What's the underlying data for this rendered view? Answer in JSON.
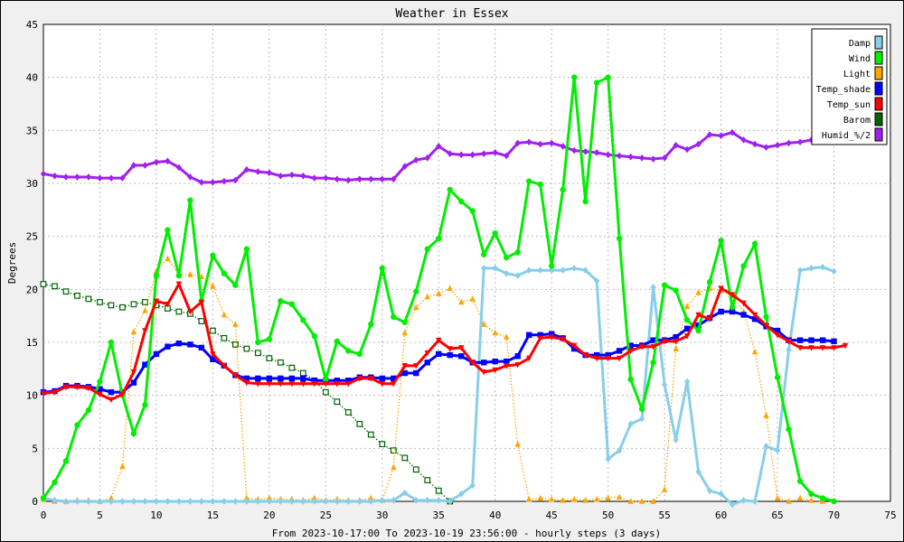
{
  "chart_data": {
    "type": "line",
    "title": "Weather in Essex",
    "ylabel": "Degrees",
    "xlabel": "From 2023-10-17:00 To 2023-10-19 23:56:00 - hourly steps (3 days)",
    "xlim": [
      0,
      75
    ],
    "ylim": [
      0,
      45
    ],
    "x_ticks": [
      0,
      5,
      10,
      15,
      20,
      25,
      30,
      35,
      40,
      45,
      50,
      55,
      60,
      65,
      70,
      75
    ],
    "y_ticks": [
      0,
      5,
      10,
      15,
      20,
      25,
      30,
      35,
      40,
      45
    ],
    "grid": true,
    "legend_position": "top-right",
    "series": [
      {
        "name": "Damp",
        "color": "#87ceeb",
        "marker": "diamond",
        "values": [
          0.3,
          0.1,
          0,
          0,
          0,
          0,
          0,
          0,
          0,
          0,
          0,
          0,
          0,
          0,
          0,
          0,
          0,
          0,
          0,
          0,
          0,
          0,
          0,
          0,
          0,
          0,
          0,
          0,
          0,
          0,
          0.1,
          0.1,
          0.8,
          0.1,
          0.1,
          0.1,
          0,
          0.7,
          1.5,
          22,
          22,
          21.5,
          21.3,
          21.8,
          21.8,
          21.8,
          21.8,
          22,
          21.8,
          20.8,
          4,
          4.8,
          7.3,
          7.8,
          20.2,
          11,
          5.8,
          11.3,
          2.8,
          1,
          0.7,
          -0.3,
          0.1,
          0,
          5.2,
          4.8,
          14.3,
          21.8,
          22,
          22.1,
          21.7
        ]
      },
      {
        "name": "Wind",
        "color": "#00ee00",
        "marker": "circle",
        "values": [
          0.3,
          1.8,
          3.8,
          7.2,
          8.6,
          11.3,
          15,
          10,
          6.4,
          9.1,
          21.3,
          25.6,
          21.3,
          28.4,
          18.9,
          23.2,
          21.5,
          20.4,
          23.8,
          15,
          15.3,
          18.9,
          18.6,
          17.1,
          15.6,
          11.5,
          15.1,
          14.2,
          13.9,
          16.7,
          22,
          17.4,
          16.9,
          19.8,
          23.8,
          24.8,
          29.4,
          28.3,
          27.4,
          23.3,
          25.3,
          23,
          23.5,
          30.2,
          29.9,
          22.2,
          29.4,
          40,
          28.3,
          39.5,
          40,
          24.8,
          11.5,
          8.7,
          13.1,
          20.4,
          19.9,
          17.1,
          16.1,
          20.7,
          24.6,
          18.3,
          22.2,
          24.3,
          17.4,
          11.7,
          6.8,
          1.9,
          0.7,
          0.3,
          0
        ]
      },
      {
        "name": "Light",
        "color": "#ffa500",
        "marker": "triangle",
        "values": [
          0.2,
          0,
          0,
          0.1,
          0.1,
          0,
          0.3,
          3.3,
          16,
          18,
          21.7,
          22.9,
          21.4,
          21.4,
          21.2,
          20.3,
          17.6,
          16.7,
          0.3,
          0.2,
          0.3,
          0.2,
          0.2,
          0.1,
          0.3,
          0.1,
          0.2,
          0.1,
          0.1,
          0.3,
          0.1,
          3.2,
          15.9,
          18.3,
          19.3,
          19.6,
          20.1,
          18.8,
          19.1,
          16.7,
          15.9,
          15.5,
          5.4,
          0.2,
          0.3,
          0.2,
          0.1,
          0.2,
          0.1,
          0.2,
          0.3,
          0.4,
          0,
          0,
          0,
          1.1,
          14.4,
          18.4,
          19.7,
          20.1,
          19.9,
          19.4,
          17.9,
          14.1,
          8.1,
          0.3,
          0,
          0.3,
          0.1,
          0
        ]
      },
      {
        "name": "Temp_shade",
        "color": "#0000ff",
        "marker": "square",
        "values": [
          10.3,
          10.4,
          10.9,
          10.9,
          10.8,
          10.6,
          10.3,
          10.3,
          11.2,
          12.9,
          13.9,
          14.6,
          14.9,
          14.8,
          14.5,
          13.4,
          12.8,
          11.9,
          11.6,
          11.6,
          11.6,
          11.6,
          11.6,
          11.6,
          11.4,
          11.4,
          11.4,
          11.4,
          11.7,
          11.7,
          11.6,
          11.6,
          12.1,
          12.1,
          13.1,
          13.9,
          13.8,
          13.7,
          13.1,
          13.1,
          13.2,
          13.2,
          13.7,
          15.7,
          15.7,
          15.8,
          15.4,
          14.4,
          13.8,
          13.8,
          13.8,
          14.2,
          14.7,
          14.7,
          15.2,
          15.2,
          15.5,
          16.3,
          16.6,
          17.3,
          17.9,
          17.9,
          17.6,
          17.2,
          16.5,
          16.1,
          15.2,
          15.2,
          15.2,
          15.2,
          15.1
        ]
      },
      {
        "name": "Temp_sun",
        "color": "#ff0000",
        "marker": "triangle-down",
        "values": [
          10.2,
          10.3,
          10.8,
          10.8,
          10.7,
          10.1,
          9.6,
          10.1,
          12.2,
          16.1,
          18.9,
          18.6,
          20.5,
          17.9,
          18.8,
          13.9,
          12.8,
          11.9,
          11.2,
          11.1,
          11.1,
          11.1,
          11.1,
          11.1,
          11.1,
          11.1,
          11.1,
          11.1,
          11.6,
          11.6,
          11.1,
          11.1,
          12.8,
          12.8,
          14,
          15.2,
          14.4,
          14.5,
          13.1,
          12.2,
          12.4,
          12.8,
          12.9,
          13.5,
          15.4,
          15.5,
          15.3,
          14.7,
          13.8,
          13.5,
          13.5,
          13.5,
          14.2,
          14.6,
          14.6,
          15.1,
          15.1,
          15.6,
          17.6,
          17.2,
          20.1,
          19.5,
          18.7,
          17.6,
          16.6,
          15.7,
          15.1,
          14.5,
          14.5,
          14.5,
          14.5,
          14.7
        ]
      },
      {
        "name": "Barom",
        "color": "#006400",
        "marker": "open-square",
        "values": [
          20.5,
          20.3,
          19.8,
          19.4,
          19.1,
          18.8,
          18.5,
          18.3,
          18.6,
          18.8,
          18.5,
          18.2,
          17.9,
          17.7,
          17,
          16.1,
          15.4,
          14.8,
          14.4,
          14,
          13.5,
          13.1,
          12.6,
          12.1,
          11.4,
          10.3,
          9.4,
          8.4,
          7.3,
          6.3,
          5.4,
          4.8,
          4.1,
          3,
          2,
          1,
          0
        ]
      },
      {
        "name": "Humid_%/2",
        "color": "#a020f0",
        "marker": "diamond",
        "values": [
          30.9,
          30.7,
          30.6,
          30.6,
          30.6,
          30.5,
          30.5,
          30.5,
          31.7,
          31.7,
          32,
          32.1,
          31.5,
          30.6,
          30.1,
          30.1,
          30.2,
          30.3,
          31.3,
          31.1,
          31,
          30.7,
          30.8,
          30.7,
          30.5,
          30.5,
          30.4,
          30.3,
          30.4,
          30.4,
          30.4,
          30.4,
          31.6,
          32.2,
          32.4,
          33.5,
          32.8,
          32.7,
          32.7,
          32.8,
          32.9,
          32.6,
          33.8,
          33.9,
          33.7,
          33.8,
          33.5,
          33.1,
          33,
          32.9,
          32.7,
          32.6,
          32.5,
          32.4,
          32.3,
          32.4,
          33.6,
          33.2,
          33.7,
          34.6,
          34.5,
          34.8,
          34.1,
          33.7,
          33.4,
          33.6,
          33.8,
          33.9,
          34.1,
          35
        ]
      }
    ]
  }
}
